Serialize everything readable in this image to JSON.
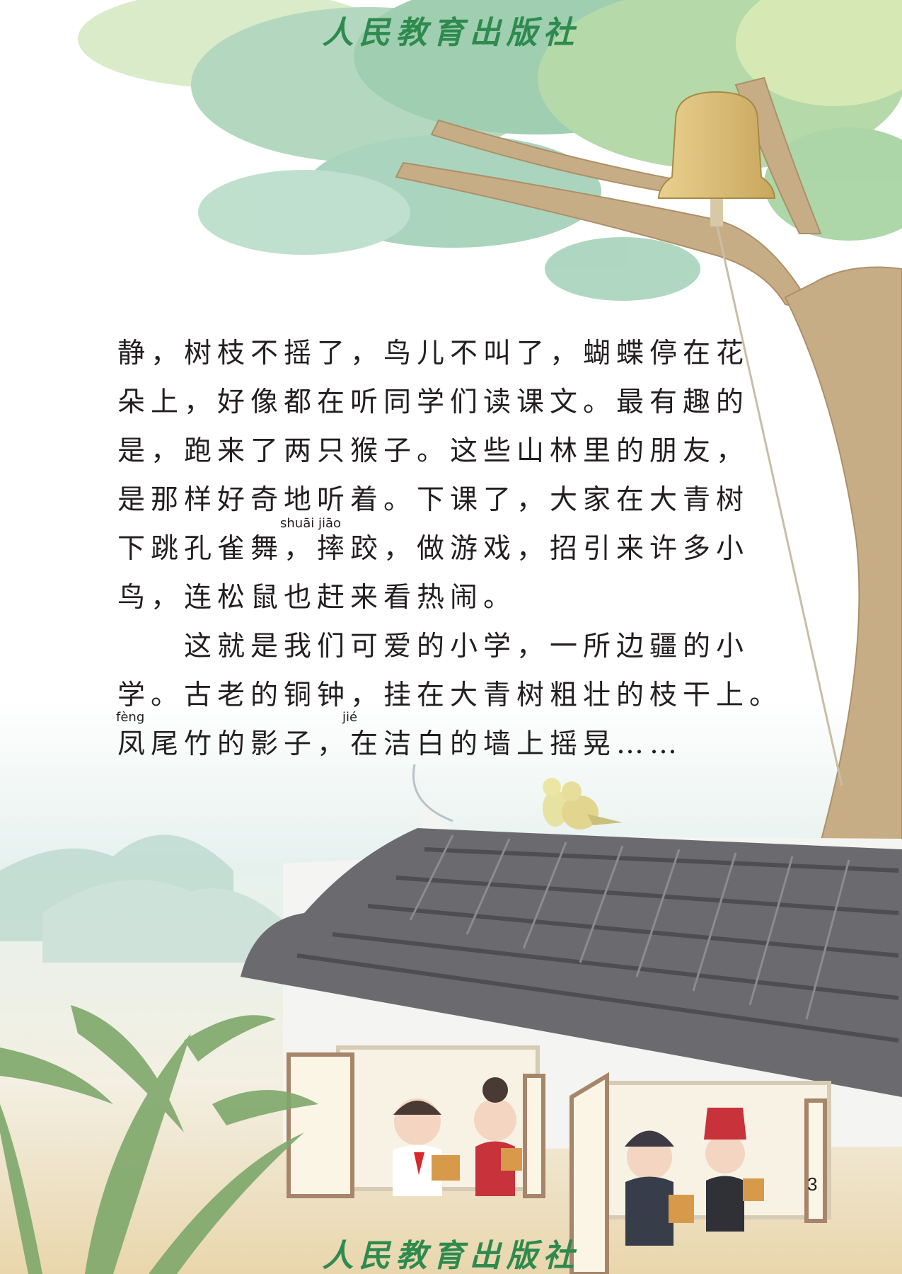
{
  "publisher": {
    "name": "人民教育出版社"
  },
  "text": {
    "lines": [
      "静，树枝不摇了，鸟儿不叫了，蝴蝶停在花",
      "朵上，好像都在听同学们读课文。最有趣的",
      "是，跑来了两只猴子。这些山林里的朋友，",
      "是那样好奇地听着。下课了，大家在大青树",
      "下跳孔雀舞，摔跤，做游戏，招引来许多小",
      "鸟，连松鼠也赶来看热闹。",
      "　　这就是我们可爱的小学，一所边疆的小",
      "学。古老的铜钟，挂在大青树粗壮的枝干上。",
      "凤尾竹的影子，在洁白的墙上摇晃……"
    ],
    "pinyin": [
      {
        "text": "shuāi jiāo"
      },
      {
        "text": "fèng"
      },
      {
        "text": "jié"
      }
    ]
  },
  "page": {
    "number": "3"
  },
  "colors": {
    "publisher_green": "#2e8a4e",
    "text": "#231f20",
    "roof": "#6b6b6f",
    "tree_trunk": "#c7ad86",
    "leaves": "#8fc6a3"
  }
}
